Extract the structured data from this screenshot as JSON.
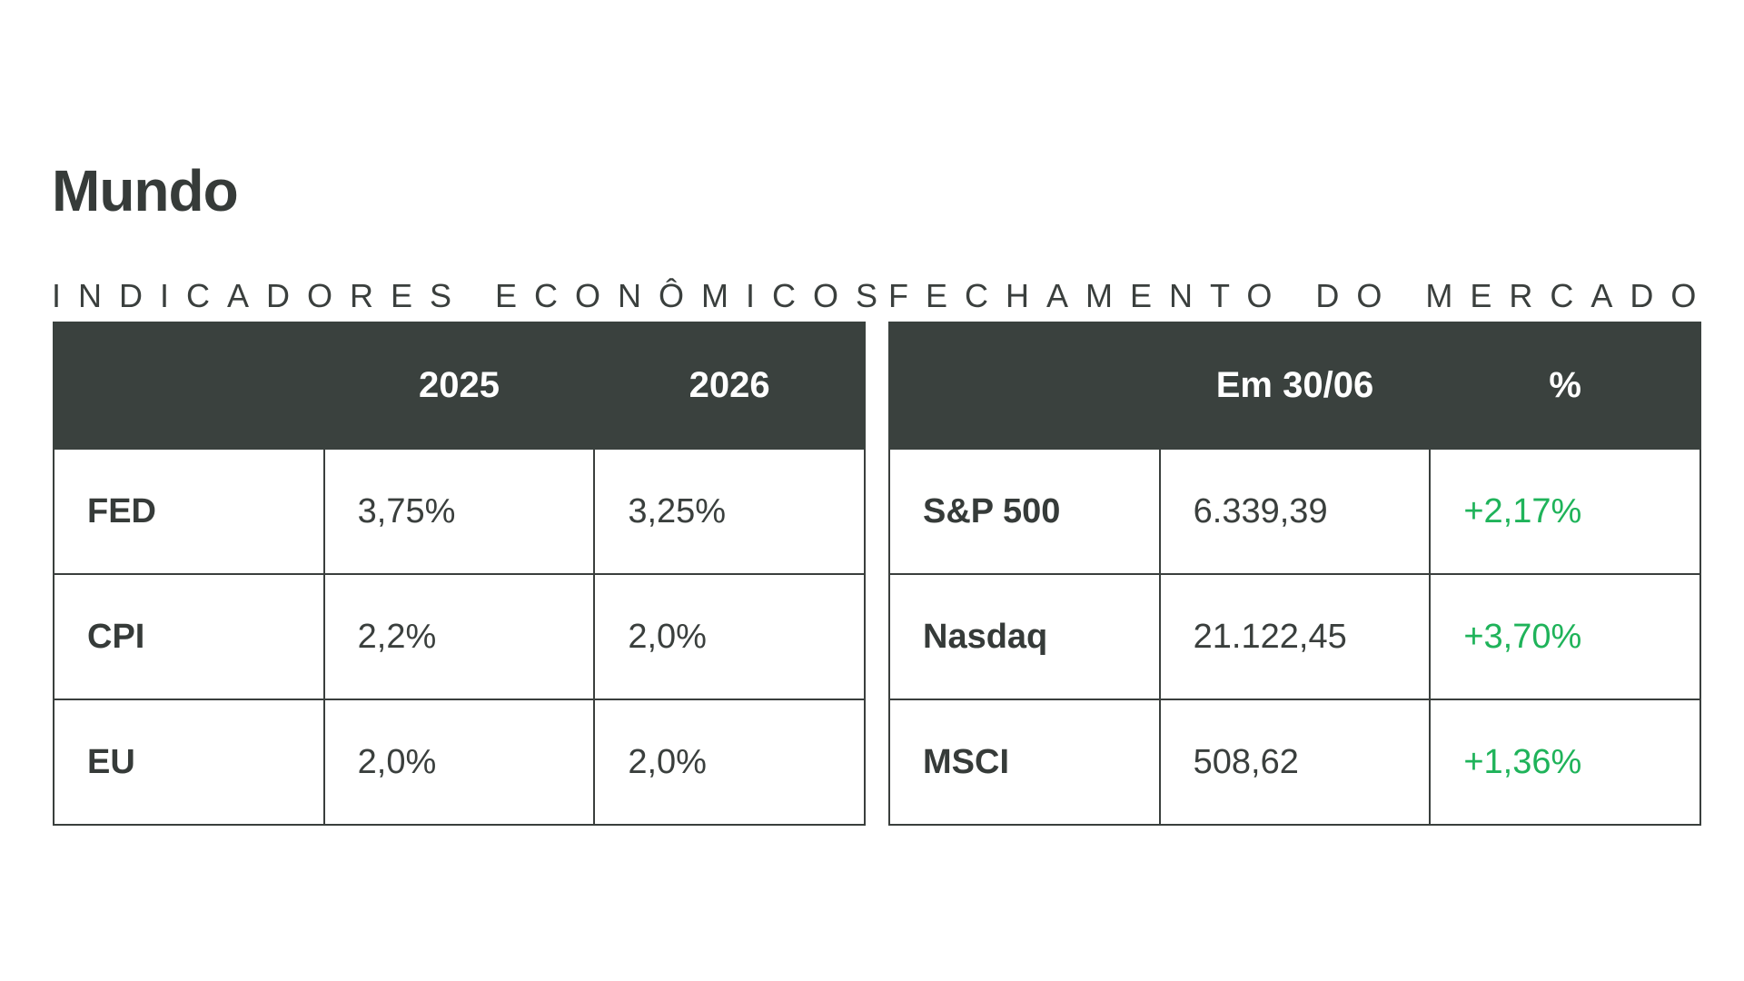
{
  "page": {
    "title": "Mundo"
  },
  "indicators": {
    "label": "INDICADORES ECONÔMICOS",
    "headers": [
      "",
      "2025",
      "2026"
    ],
    "rows": [
      {
        "name": "FED",
        "v2025": "3,75%",
        "v2026": "3,25%"
      },
      {
        "name": "CPI",
        "v2025": "2,2%",
        "v2026": "2,0%"
      },
      {
        "name": "EU",
        "v2025": "2,0%",
        "v2026": "2,0%"
      }
    ]
  },
  "market": {
    "label": "FECHAMENTO DO MERCADO",
    "headers": [
      "",
      "Em 30/06",
      "%"
    ],
    "rows": [
      {
        "name": "S&P 500",
        "close": "6.339,39",
        "change": "+2,17%"
      },
      {
        "name": "Nasdaq",
        "close": "21.122,45",
        "change": "+3,70%"
      },
      {
        "name": "MSCI",
        "close": "508,62",
        "change": "+1,36%"
      }
    ]
  },
  "colors": {
    "header_bg": "#3a413e",
    "text": "#3a3f3d",
    "positive": "#1fb35a"
  }
}
